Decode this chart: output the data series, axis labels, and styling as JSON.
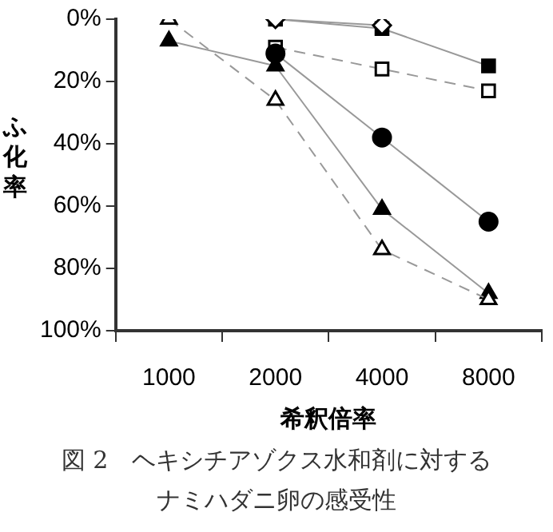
{
  "chart_data": {
    "type": "line",
    "title": "図 2　ヘキシチアゾクス水和剤に対するナミハダニ卵の感受性",
    "xlabel": "希釈倍率",
    "ylabel": "ふ化率",
    "categories": [
      "1000",
      "2000",
      "4000",
      "8000"
    ],
    "ylim": [
      100,
      0
    ],
    "yticks": [
      {
        "value": 0,
        "label": "0%"
      },
      {
        "value": 20,
        "label": "20%"
      },
      {
        "value": 40,
        "label": "40%"
      },
      {
        "value": 60,
        "label": "60%"
      },
      {
        "value": 80,
        "label": "80%"
      },
      {
        "value": 100,
        "label": "100%"
      }
    ],
    "grid": false,
    "legend": false,
    "series": [
      {
        "color": "#000000",
        "marker": "square",
        "line_style": "solid",
        "values": [
          null,
          0,
          3,
          15
        ]
      },
      {
        "color": "#ffffff",
        "marker": "diamond",
        "line_style": "solid",
        "values": [
          null,
          0,
          2,
          null
        ]
      },
      {
        "color": "#ffffff",
        "marker": "square",
        "line_style": "dashed",
        "values": [
          null,
          9,
          16,
          23
        ]
      },
      {
        "color": "#000000",
        "marker": "circle",
        "line_style": "solid",
        "values": [
          null,
          11,
          38,
          65
        ]
      },
      {
        "color": "#000000",
        "marker": "triangle",
        "line_style": "solid",
        "values": [
          7,
          15,
          61,
          88
        ]
      },
      {
        "color": "#ffffff",
        "marker": "triangle",
        "line_style": "dashed",
        "values": [
          0,
          26,
          74,
          90
        ]
      }
    ]
  }
}
